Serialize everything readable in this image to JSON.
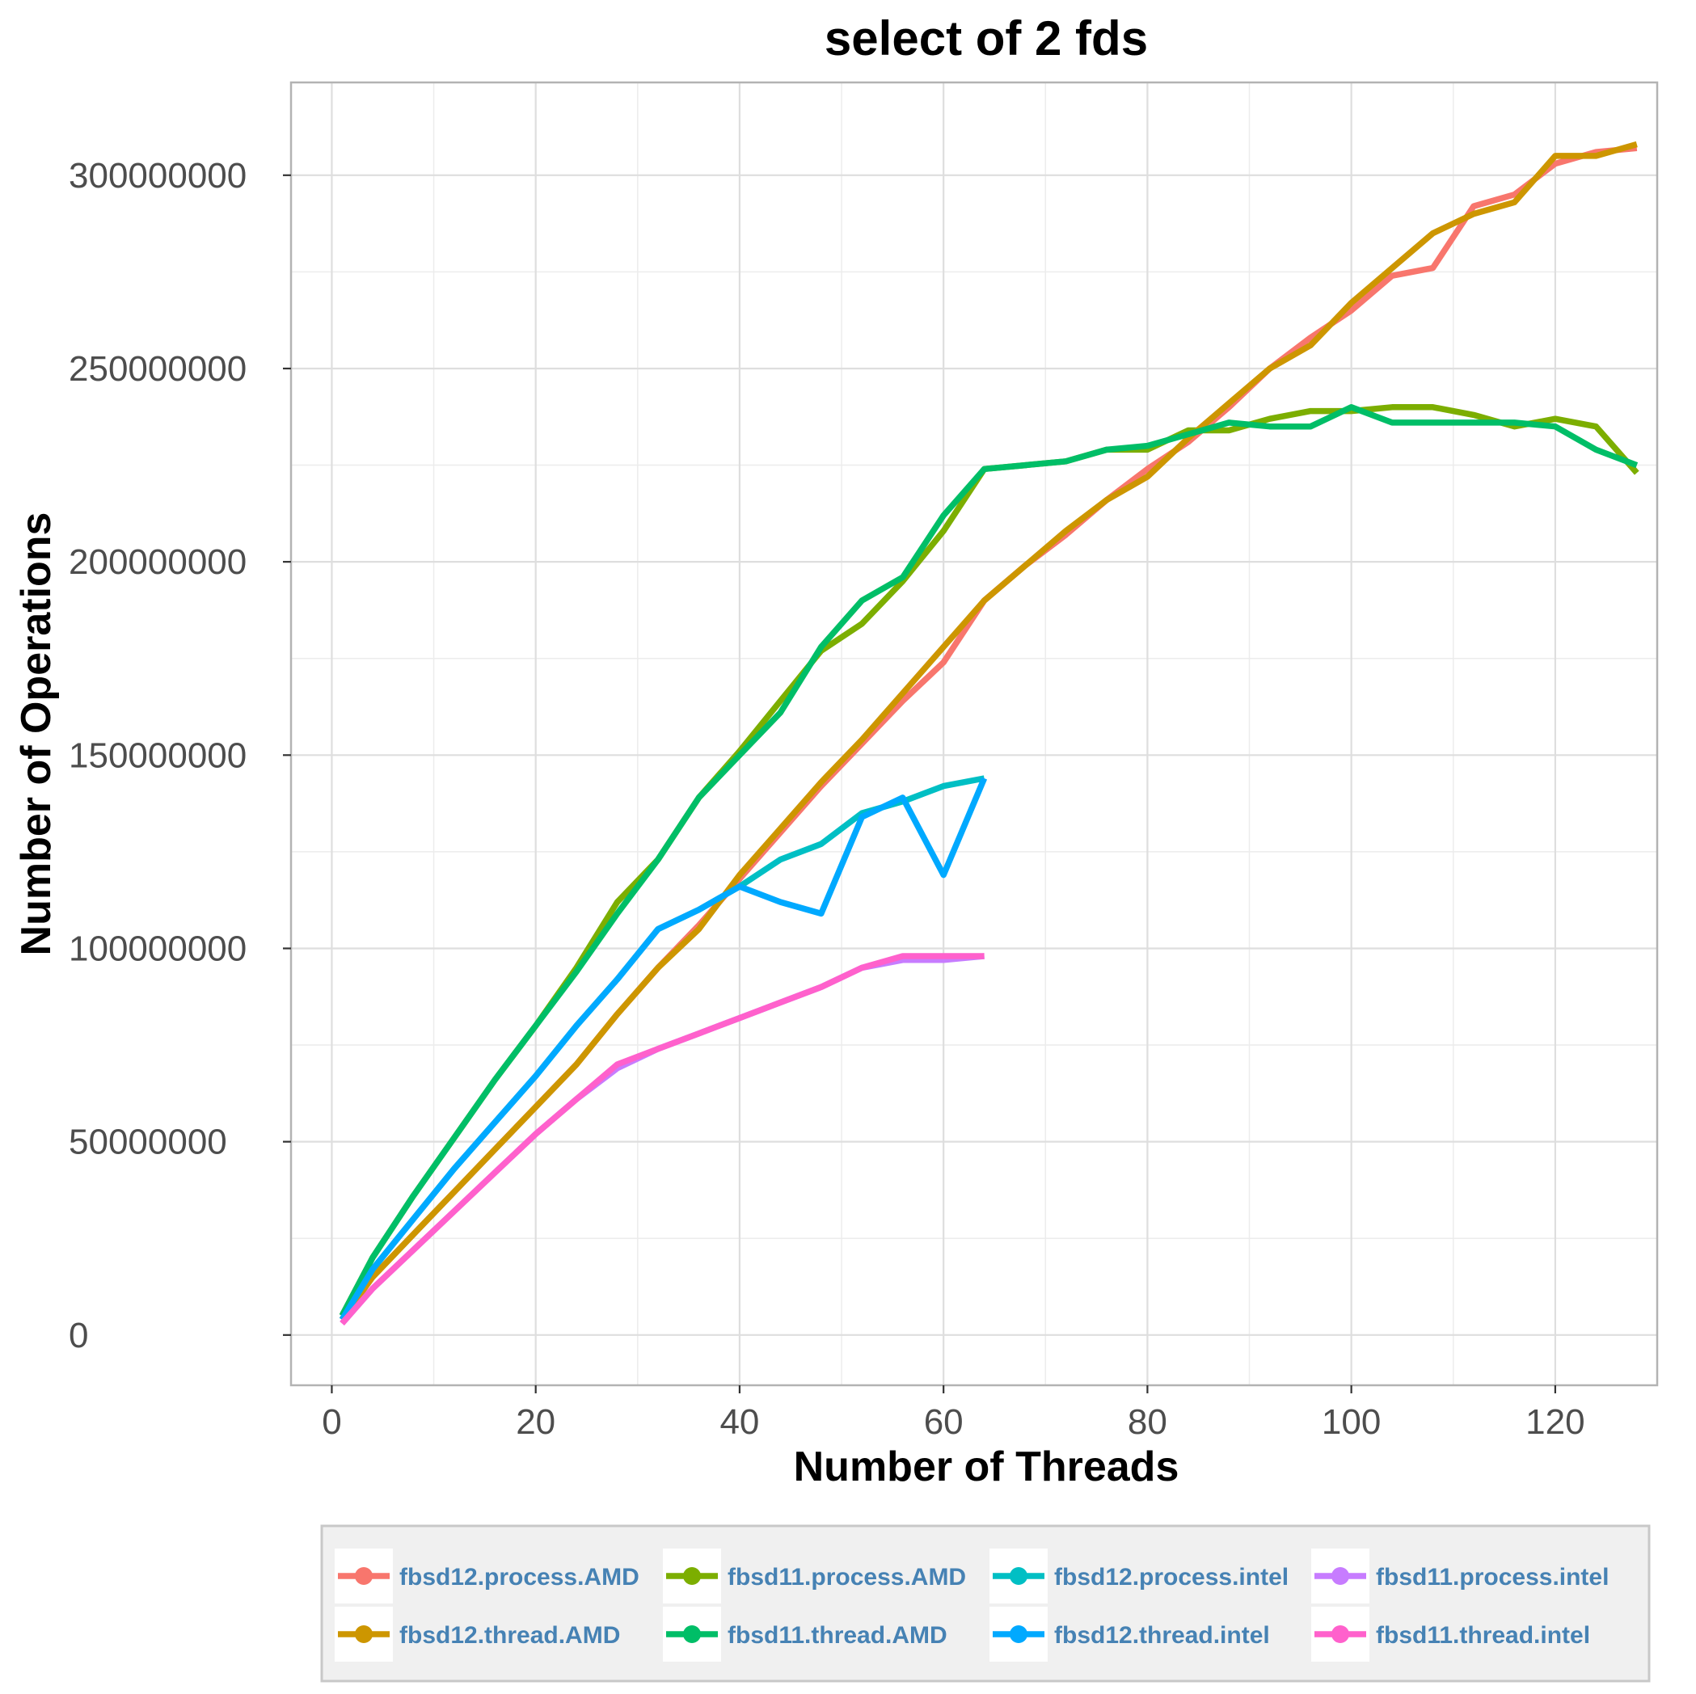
{
  "chart_data": {
    "type": "line",
    "title": "select of 2 fds",
    "xlabel": "Number of Threads",
    "ylabel": "Number of Operations",
    "xlim": [
      -4,
      130
    ],
    "ylim": [
      -13000000,
      324000000
    ],
    "x_ticks": [
      0,
      20,
      40,
      60,
      80,
      100,
      120
    ],
    "x_tick_labels": [
      "0",
      "20",
      "40",
      "60",
      "80",
      "100",
      "120"
    ],
    "y_ticks": [
      0,
      50000000,
      100000000,
      150000000,
      200000000,
      250000000,
      300000000
    ],
    "y_tick_labels": [
      "0",
      "50000000",
      "100000000",
      "150000000",
      "200000000",
      "250000000",
      "300000000"
    ],
    "grid": true,
    "legend_position": "bottom",
    "series": [
      {
        "name": "fbsd12.process.AMD",
        "color": "#F8766D",
        "x": [
          1,
          4,
          8,
          12,
          16,
          20,
          24,
          28,
          32,
          36,
          40,
          44,
          48,
          52,
          56,
          60,
          64,
          68,
          72,
          76,
          80,
          84,
          88,
          92,
          96,
          100,
          104,
          108,
          112,
          116,
          120,
          124,
          128
        ],
        "y": [
          4000000,
          15000000,
          26000000,
          37000000,
          48000000,
          59000000,
          70000000,
          83000000,
          95000000,
          106000000,
          118000000,
          130000000,
          142000000,
          153000000,
          164000000,
          174000000,
          190000000,
          199000000,
          207000000,
          216000000,
          224000000,
          231000000,
          240000000,
          250000000,
          258000000,
          265000000,
          274000000,
          276000000,
          292000000,
          295000000,
          303000000,
          306000000,
          307000000
        ]
      },
      {
        "name": "fbsd11.process.AMD",
        "color": "#7CAE00",
        "x": [
          1,
          4,
          8,
          12,
          16,
          20,
          24,
          28,
          32,
          36,
          40,
          44,
          48,
          52,
          56,
          60,
          64,
          68,
          72,
          76,
          80,
          84,
          88,
          92,
          96,
          100,
          104,
          108,
          112,
          116,
          120,
          124,
          128
        ],
        "y": [
          5000000,
          20000000,
          36000000,
          51000000,
          66000000,
          80000000,
          95000000,
          112000000,
          123000000,
          139000000,
          151000000,
          164000000,
          177000000,
          184000000,
          195000000,
          208000000,
          224000000,
          225000000,
          226000000,
          229000000,
          229000000,
          234000000,
          234000000,
          237000000,
          239000000,
          239000000,
          240000000,
          240000000,
          238000000,
          235000000,
          237000000,
          235000000,
          223000000
        ]
      },
      {
        "name": "fbsd12.process.intel",
        "color": "#00BFC4",
        "x": [
          1,
          4,
          8,
          12,
          16,
          20,
          24,
          28,
          32,
          36,
          40,
          44,
          48,
          52,
          56,
          60,
          64
        ],
        "y": [
          4000000,
          17000000,
          30000000,
          43000000,
          55000000,
          67000000,
          80000000,
          92000000,
          105000000,
          110000000,
          116000000,
          123000000,
          127000000,
          135000000,
          138000000,
          142000000,
          144000000
        ]
      },
      {
        "name": "fbsd11.process.intel",
        "color": "#C77CFF",
        "x": [
          1,
          4,
          8,
          12,
          16,
          20,
          24,
          28,
          32,
          36,
          40,
          44,
          48,
          52,
          56,
          60,
          64
        ],
        "y": [
          3000000,
          12000000,
          22000000,
          32000000,
          42000000,
          52000000,
          61000000,
          69000000,
          74000000,
          78000000,
          82000000,
          86000000,
          90000000,
          95000000,
          97000000,
          97000000,
          98000000
        ]
      },
      {
        "name": "fbsd12.thread.AMD",
        "color": "#CD9600",
        "x": [
          1,
          4,
          8,
          12,
          16,
          20,
          24,
          28,
          32,
          36,
          40,
          44,
          48,
          52,
          56,
          60,
          64,
          68,
          72,
          76,
          80,
          84,
          88,
          92,
          96,
          100,
          104,
          108,
          112,
          116,
          120,
          124,
          128
        ],
        "y": [
          4000000,
          15000000,
          26000000,
          37000000,
          48000000,
          59000000,
          70000000,
          83000000,
          95000000,
          105000000,
          119000000,
          131000000,
          143000000,
          154000000,
          166000000,
          178000000,
          190000000,
          199000000,
          208000000,
          216000000,
          222000000,
          232000000,
          241000000,
          250000000,
          256000000,
          267000000,
          276000000,
          285000000,
          290000000,
          293000000,
          305000000,
          305000000,
          308000000
        ]
      },
      {
        "name": "fbsd11.thread.AMD",
        "color": "#00BE67",
        "x": [
          1,
          4,
          8,
          12,
          16,
          20,
          24,
          28,
          32,
          36,
          40,
          44,
          48,
          52,
          56,
          60,
          64,
          68,
          72,
          76,
          80,
          84,
          88,
          92,
          96,
          100,
          104,
          108,
          112,
          116,
          120,
          124,
          128
        ],
        "y": [
          5000000,
          20000000,
          36000000,
          51000000,
          66000000,
          80000000,
          94000000,
          109000000,
          123000000,
          139000000,
          150000000,
          161000000,
          178000000,
          190000000,
          196000000,
          212000000,
          224000000,
          225000000,
          226000000,
          229000000,
          230000000,
          233000000,
          236000000,
          235000000,
          235000000,
          240000000,
          236000000,
          236000000,
          236000000,
          236000000,
          235000000,
          229000000,
          225000000
        ]
      },
      {
        "name": "fbsd12.thread.intel",
        "color": "#00A9FF",
        "x": [
          1,
          4,
          8,
          12,
          16,
          20,
          24,
          28,
          32,
          36,
          40,
          44,
          48,
          52,
          56,
          60,
          64
        ],
        "y": [
          4000000,
          17000000,
          30000000,
          43000000,
          55000000,
          67000000,
          80000000,
          92000000,
          105000000,
          110000000,
          116000000,
          112000000,
          109000000,
          134000000,
          139000000,
          119000000,
          144000000
        ]
      },
      {
        "name": "fbsd11.thread.intel",
        "color": "#FF61CC",
        "x": [
          1,
          4,
          8,
          12,
          16,
          20,
          24,
          28,
          32,
          36,
          40,
          44,
          48,
          52,
          56,
          60,
          64
        ],
        "y": [
          3000000,
          12000000,
          22000000,
          32000000,
          42000000,
          52000000,
          61000000,
          70000000,
          74000000,
          78000000,
          82000000,
          86000000,
          90000000,
          95000000,
          98000000,
          98000000,
          98000000
        ]
      }
    ]
  }
}
